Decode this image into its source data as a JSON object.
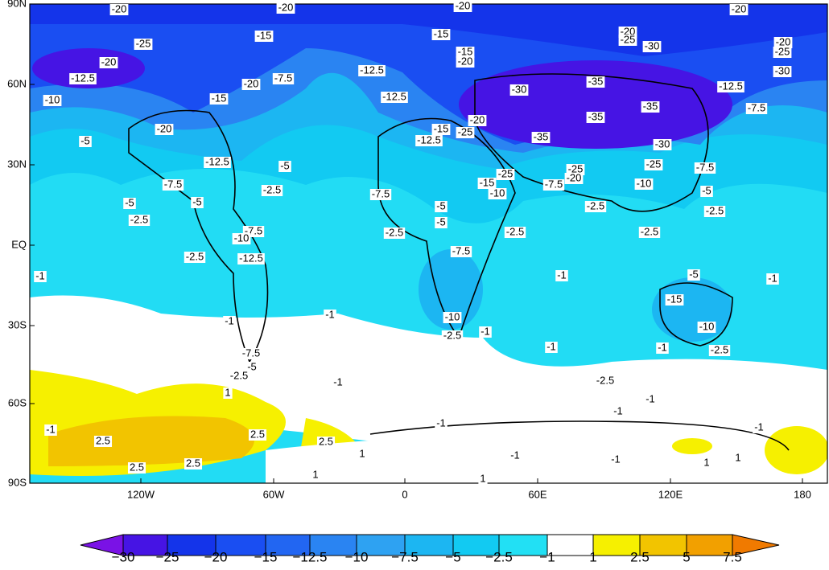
{
  "map": {
    "lon_labels": [
      "120W",
      "60W",
      "0",
      "60E",
      "120E",
      "180"
    ],
    "lat_labels": [
      "90N",
      "60N",
      "30N",
      "EQ",
      "30S",
      "60S",
      "90S"
    ],
    "colorbar": {
      "labels": [
        "−30",
        "−25",
        "−20",
        "−15",
        "−12.5",
        "−10",
        "−7.5",
        "−5",
        "−2.5",
        "−1",
        "1",
        "2.5",
        "5",
        "7.5"
      ],
      "colors": [
        "#7a12e6",
        "#4614e4",
        "#1434ea",
        "#1a4ef2",
        "#2266f2",
        "#2a84f2",
        "#2ea2f2",
        "#1cb6f2",
        "#12caf2",
        "#22e0f4",
        "#ffffff",
        "#f6f000",
        "#f2c400",
        "#f2a000",
        "#f07a00"
      ]
    },
    "contour_labels": [
      "-20",
      "-20",
      "-20",
      "-20",
      "-15",
      "-25",
      "-20",
      "-12.5",
      "-10",
      "-20",
      "-7.5",
      "-15",
      "-20",
      "-5",
      "-12.5",
      "-5",
      "-7.5",
      "-5",
      "-2.5",
      "-5",
      "-2.5",
      "-7.5",
      "-10",
      "-12.5",
      "-2.5",
      "-1",
      "-1",
      "-1",
      "-7.5",
      "-5",
      "-2.5",
      "-1",
      "1",
      "-12.5",
      "-12.5",
      "-15",
      "-15",
      "-20",
      "-20",
      "-25",
      "-12.5",
      "-15",
      "-7.5",
      "-5",
      "-5",
      "-2.5",
      "-7.5",
      "-2.5",
      "-10",
      "-2.5",
      "-1",
      "-1",
      "-1",
      "-2.5",
      "-1",
      "-1",
      "-1",
      "-1",
      "-1",
      "-30",
      "-35",
      "-35",
      "-35",
      "-35",
      "-30",
      "-25",
      "-15",
      "-10",
      "-7.5",
      "-25",
      "-20",
      "-2.5",
      "-10",
      "-25",
      "-2.5",
      "-15",
      "-10",
      "-5",
      "-2.5",
      "-1",
      "-1",
      "-20",
      "-25",
      "-30",
      "-20",
      "-25",
      "-30",
      "-12.5",
      "-7.5",
      "-7.5",
      "-5",
      "-2.5",
      "-1",
      "2.5",
      "2.5",
      "2.5",
      "2.5",
      "2.5",
      "1",
      "1",
      "1",
      "1",
      "-1",
      "1"
    ]
  }
}
